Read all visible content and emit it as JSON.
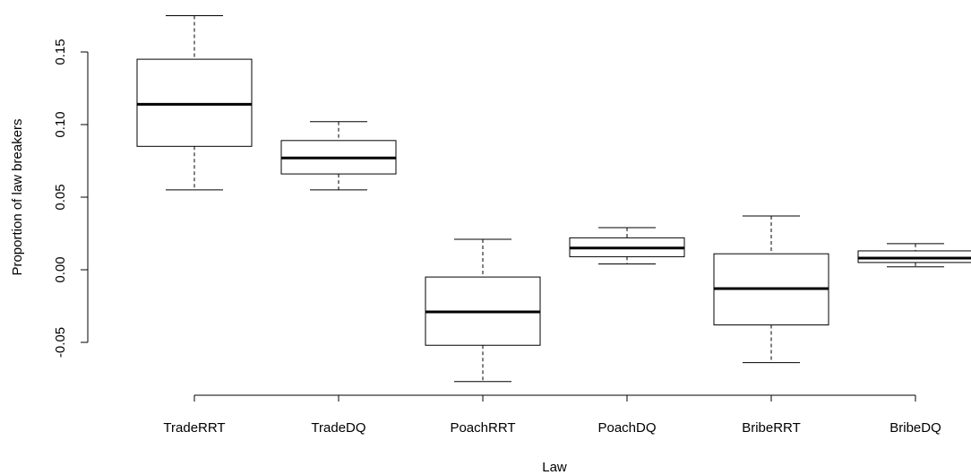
{
  "chart_data": {
    "type": "boxplot",
    "title": "",
    "xlabel": "Law",
    "ylabel": "Proportion of law breakers",
    "ylim": [
      -0.08,
      0.175
    ],
    "yticks": [
      -0.05,
      0.0,
      0.05,
      0.1,
      0.15
    ],
    "ytick_labels": [
      "-0.05",
      "0.00",
      "0.05",
      "0.10",
      "0.15"
    ],
    "grid": false,
    "categories": [
      "TradeRRT",
      "TradeDQ",
      "PoachRRT",
      "PoachDQ",
      "BribeRRT",
      "BribeDQ"
    ],
    "boxes": [
      {
        "name": "TradeRRT",
        "whisker_low": 0.055,
        "q1": 0.085,
        "median": 0.114,
        "q3": 0.145,
        "whisker_high": 0.175
      },
      {
        "name": "TradeDQ",
        "whisker_low": 0.055,
        "q1": 0.066,
        "median": 0.077,
        "q3": 0.089,
        "whisker_high": 0.102
      },
      {
        "name": "PoachRRT",
        "whisker_low": -0.077,
        "q1": -0.052,
        "median": -0.029,
        "q3": -0.005,
        "whisker_high": 0.021
      },
      {
        "name": "PoachDQ",
        "whisker_low": 0.004,
        "q1": 0.009,
        "median": 0.015,
        "q3": 0.022,
        "whisker_high": 0.029
      },
      {
        "name": "BribeRRT",
        "whisker_low": -0.064,
        "q1": -0.038,
        "median": -0.013,
        "q3": 0.011,
        "whisker_high": 0.037
      },
      {
        "name": "BribeDQ",
        "whisker_low": 0.002,
        "q1": 0.005,
        "median": 0.008,
        "q3": 0.013,
        "whisker_high": 0.018
      }
    ],
    "colors": {
      "stroke": "#000000",
      "fill": "#ffffff"
    }
  }
}
